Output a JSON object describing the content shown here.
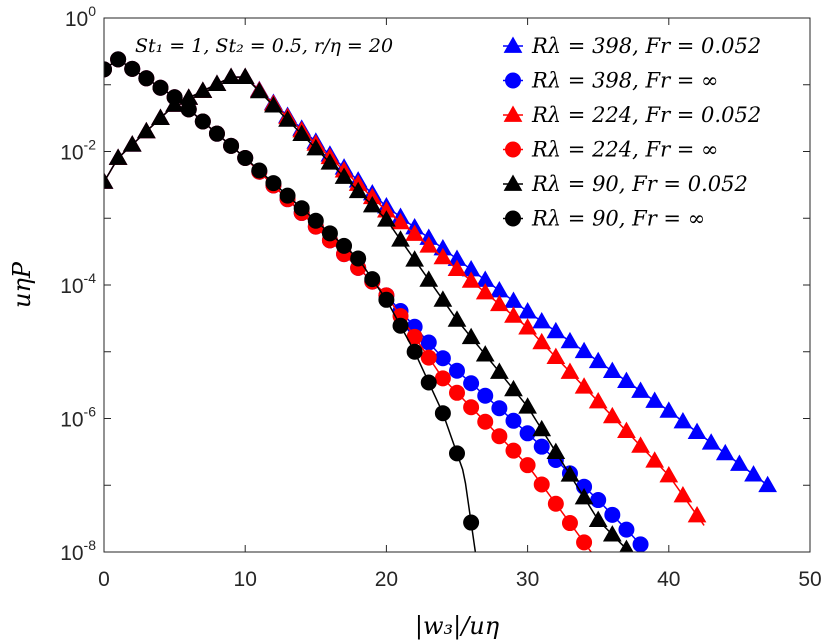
{
  "chart_data": {
    "type": "line",
    "title": "",
    "annotation": "St₁ = 1, St₂ = 0.5, r/η = 20",
    "xlabel": "|w₃|/uη",
    "ylabel": "uηP",
    "xlim": [
      0,
      50
    ],
    "ylim": [
      1e-08,
      1
    ],
    "yscale": "log",
    "xticks": [
      0,
      10,
      20,
      30,
      40,
      50
    ],
    "yticks": [
      {
        "value": 1e-08,
        "base": "10",
        "exp": "-8"
      },
      {
        "value": 1e-06,
        "base": "10",
        "exp": "-6"
      },
      {
        "value": 0.0001,
        "base": "10",
        "exp": "-4"
      },
      {
        "value": 0.01,
        "base": "10",
        "exp": "-2"
      },
      {
        "value": 1,
        "base": "10",
        "exp": "0"
      }
    ],
    "legend_position": "top-right",
    "series": [
      {
        "name": "Rλ = 398, Fr = 0.052",
        "color": "#0000ff",
        "marker": "triangle",
        "x": [
          0,
          1,
          5,
          9,
          10,
          20,
          30,
          40,
          47
        ],
        "y": [
          0.0035,
          0.008,
          0.05,
          0.13,
          0.13,
          0.0015,
          4e-05,
          1.3e-06,
          1e-07
        ]
      },
      {
        "name": "Rλ = 398, Fr = ∞",
        "color": "#0000ff",
        "marker": "circle",
        "x": [
          0,
          1,
          5,
          10,
          20,
          24,
          30,
          35,
          38
        ],
        "y": [
          0.17,
          0.24,
          0.065,
          0.008,
          7e-05,
          8e-06,
          6e-07,
          6e-08,
          1.3e-08
        ]
      },
      {
        "name": "Rλ = 224, Fr = 0.052",
        "color": "#ff0000",
        "marker": "triangle",
        "x": [
          0,
          1,
          5,
          9,
          10,
          20,
          30,
          40,
          42.5
        ],
        "y": [
          0.0035,
          0.008,
          0.05,
          0.13,
          0.13,
          0.0013,
          2.3e-05,
          1.4e-07,
          2.5e-08
        ]
      },
      {
        "name": "Rλ = 224, Fr = ∞",
        "color": "#ff0000",
        "marker": "circle",
        "x": [
          0,
          1,
          5,
          10,
          20,
          24,
          30,
          34.5
        ],
        "y": [
          0.17,
          0.24,
          0.065,
          0.008,
          7e-05,
          4e-06,
          2e-07,
          1e-08
        ]
      },
      {
        "name": "Rλ = 90, Fr = 0.052",
        "color": "#000000",
        "marker": "triangle",
        "x": [
          0,
          1,
          5,
          9,
          10,
          20,
          25,
          30,
          35,
          37.2
        ],
        "y": [
          0.0035,
          0.008,
          0.05,
          0.13,
          0.13,
          0.00095,
          3e-05,
          1.5e-06,
          3e-08,
          1e-08
        ]
      },
      {
        "name": "Rλ = 90, Fr = ∞",
        "color": "#000000",
        "marker": "circle",
        "x": [
          0,
          1,
          5,
          10,
          18,
          20,
          22,
          24,
          25.5,
          26.3
        ],
        "y": [
          0.17,
          0.24,
          0.065,
          0.008,
          0.00025,
          6e-05,
          1e-05,
          1.2e-06,
          1.5e-07,
          1e-08
        ]
      }
    ]
  }
}
